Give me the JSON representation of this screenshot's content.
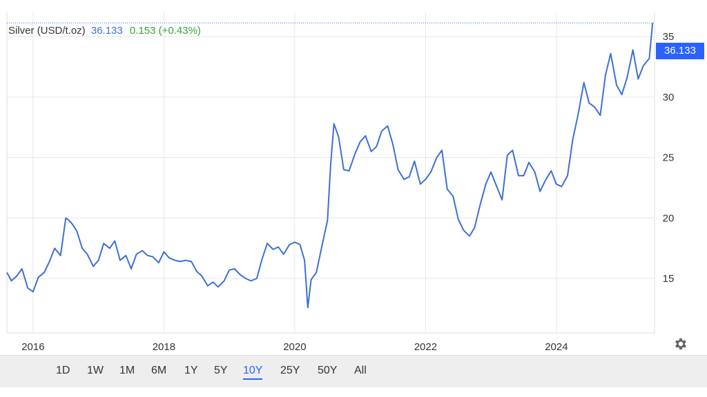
{
  "header": {
    "title": "Silver (USD/t.oz)",
    "price": "36.133",
    "change": "0.153 (+0.43%)"
  },
  "price_badge": "36.133",
  "range_buttons": [
    "1D",
    "1W",
    "1M",
    "6M",
    "1Y",
    "5Y",
    "10Y",
    "25Y",
    "50Y",
    "All"
  ],
  "active_range": "10Y",
  "colors": {
    "line": "#3b6fd6",
    "accent": "#2962ff",
    "up": "#2ea82e",
    "grid": "#e6e6e6"
  },
  "icons": {
    "settings": "gear-icon"
  },
  "chart_data": {
    "type": "line",
    "title": "Silver (USD/t.oz)",
    "xlabel": "",
    "ylabel": "",
    "x_ticks": [
      2016,
      2018,
      2020,
      2022,
      2024
    ],
    "y_ticks": [
      15,
      20,
      25,
      30,
      35
    ],
    "xlim": [
      2015.6,
      2025.5
    ],
    "ylim": [
      10.5,
      37.0
    ],
    "grid": true,
    "last_value": 36.133,
    "series": [
      {
        "name": "Silver",
        "x": [
          2015.6,
          2015.67,
          2015.75,
          2015.83,
          2015.92,
          2016.0,
          2016.08,
          2016.17,
          2016.25,
          2016.33,
          2016.42,
          2016.5,
          2016.55,
          2016.6,
          2016.67,
          2016.75,
          2016.83,
          2016.92,
          2017.0,
          2017.08,
          2017.17,
          2017.25,
          2017.33,
          2017.42,
          2017.5,
          2017.58,
          2017.67,
          2017.75,
          2017.83,
          2017.92,
          2018.0,
          2018.08,
          2018.17,
          2018.25,
          2018.33,
          2018.42,
          2018.5,
          2018.58,
          2018.67,
          2018.75,
          2018.83,
          2018.92,
          2019.0,
          2019.08,
          2019.17,
          2019.25,
          2019.33,
          2019.42,
          2019.5,
          2019.58,
          2019.67,
          2019.75,
          2019.83,
          2019.92,
          2020.0,
          2020.08,
          2020.15,
          2020.2,
          2020.25,
          2020.33,
          2020.42,
          2020.5,
          2020.55,
          2020.6,
          2020.67,
          2020.75,
          2020.83,
          2020.92,
          2021.0,
          2021.08,
          2021.17,
          2021.25,
          2021.33,
          2021.42,
          2021.5,
          2021.58,
          2021.67,
          2021.75,
          2021.83,
          2021.92,
          2022.0,
          2022.08,
          2022.17,
          2022.25,
          2022.33,
          2022.42,
          2022.5,
          2022.58,
          2022.67,
          2022.75,
          2022.83,
          2022.92,
          2023.0,
          2023.08,
          2023.17,
          2023.25,
          2023.33,
          2023.42,
          2023.5,
          2023.58,
          2023.67,
          2023.75,
          2023.83,
          2023.92,
          2024.0,
          2024.08,
          2024.17,
          2024.25,
          2024.33,
          2024.42,
          2024.5,
          2024.58,
          2024.67,
          2024.75,
          2024.83,
          2024.92,
          2025.0,
          2025.08,
          2025.17,
          2025.25,
          2025.33,
          2025.42,
          2025.47
        ],
        "y": [
          15.5,
          14.8,
          15.2,
          15.8,
          14.2,
          13.9,
          15.1,
          15.5,
          16.4,
          17.5,
          16.9,
          20.0,
          19.8,
          19.5,
          18.9,
          17.5,
          17.0,
          16.0,
          16.5,
          17.9,
          17.5,
          18.1,
          16.5,
          16.9,
          15.8,
          17.0,
          17.3,
          16.9,
          16.8,
          16.3,
          17.2,
          16.7,
          16.5,
          16.4,
          16.5,
          16.4,
          15.6,
          15.2,
          14.4,
          14.7,
          14.3,
          14.8,
          15.7,
          15.8,
          15.3,
          15.0,
          14.8,
          15.0,
          16.6,
          17.9,
          17.4,
          17.6,
          17.0,
          17.8,
          18.0,
          17.8,
          16.5,
          12.6,
          14.9,
          15.5,
          17.8,
          19.8,
          24.5,
          27.8,
          26.7,
          24.0,
          23.9,
          25.3,
          26.3,
          26.8,
          25.5,
          25.9,
          27.2,
          27.6,
          26.1,
          24.0,
          23.2,
          23.4,
          24.7,
          22.8,
          23.2,
          23.8,
          25.0,
          25.6,
          22.4,
          21.8,
          19.9,
          19.0,
          18.5,
          19.2,
          21.0,
          22.8,
          23.8,
          22.7,
          21.5,
          25.2,
          25.6,
          23.5,
          23.5,
          24.6,
          23.8,
          22.2,
          23.1,
          23.9,
          22.8,
          22.6,
          23.5,
          26.5,
          28.5,
          31.2,
          29.5,
          29.2,
          28.5,
          31.8,
          33.6,
          31.0,
          30.2,
          31.6,
          33.9,
          31.5,
          32.6,
          33.2,
          36.13
        ]
      }
    ]
  }
}
